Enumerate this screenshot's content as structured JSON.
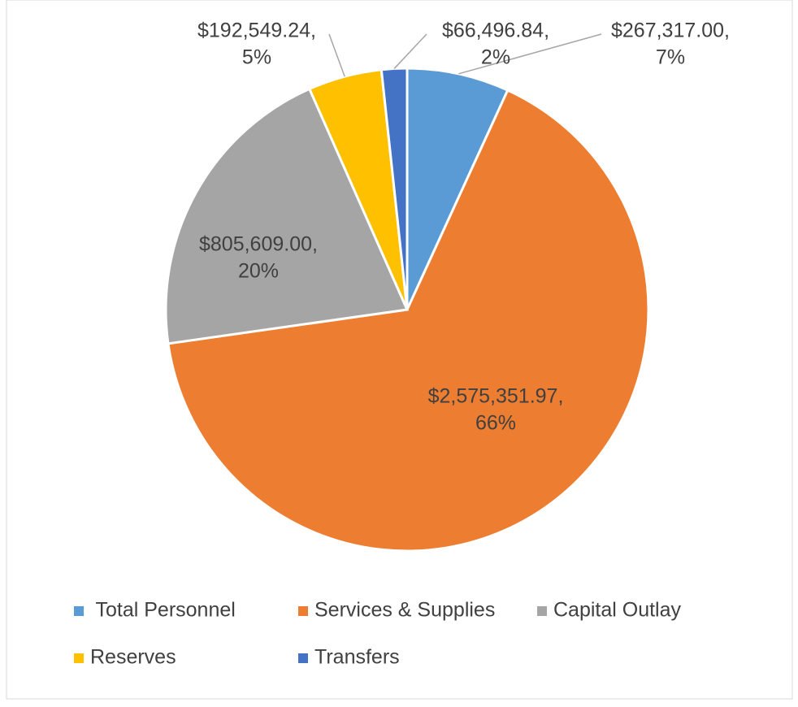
{
  "chart_data": {
    "type": "pie",
    "categories": [
      " Total Personnel",
      "Services & Supplies",
      "Capital Outlay",
      "Reserves",
      "Transfers"
    ],
    "values": [
      267317.0,
      2575351.97,
      805609.0,
      192549.24,
      66496.84
    ],
    "value_labels": [
      "$267,317.00,",
      "$2,575,351.97,",
      "$805,609.00,",
      "$192,549.24,",
      "$66,496.84,"
    ],
    "percents": [
      7,
      66,
      20,
      5,
      2
    ],
    "percent_labels": [
      "7%",
      "66%",
      "20%",
      "5%",
      "2%"
    ],
    "colors": [
      "#5b9bd5",
      "#ed7d31",
      "#a5a5a5",
      "#ffc000",
      "#4472c4"
    ],
    "legend": "bottom"
  }
}
